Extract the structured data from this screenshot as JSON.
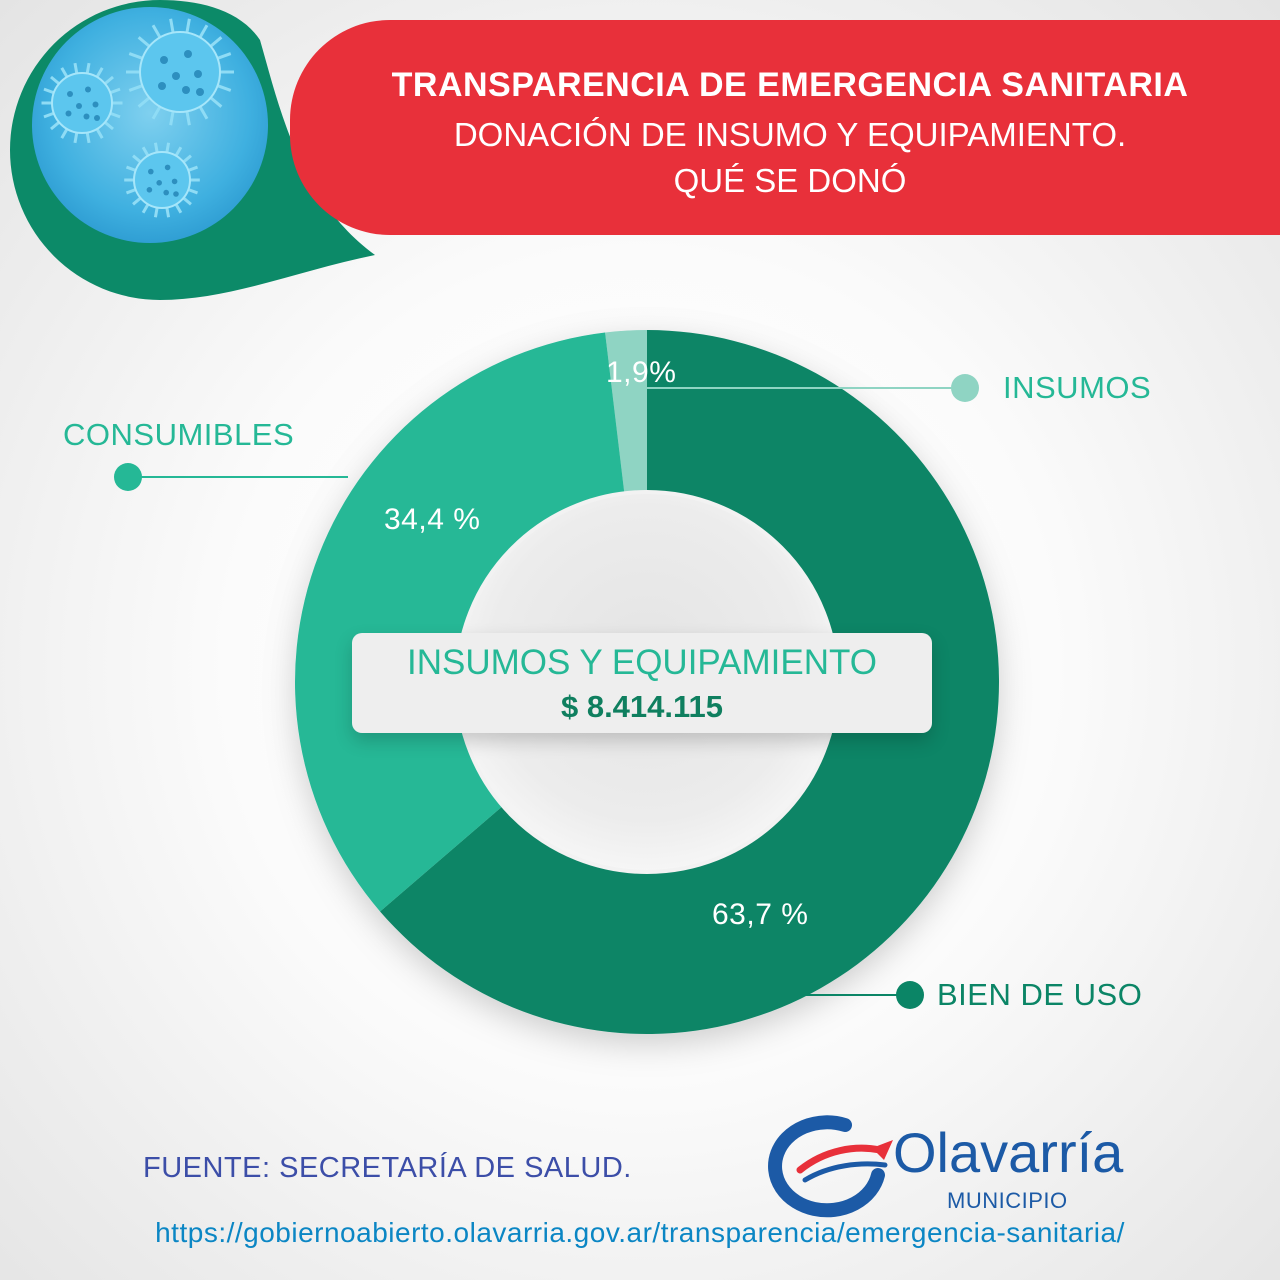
{
  "header": {
    "line1": "TRANSPARENCIA DE  EMERGENCIA SANITARIA",
    "line2": "DONACIÓN DE INSUMO Y EQUIPAMIENTO.",
    "line3": "QUÉ SE DONÓ"
  },
  "center": {
    "title": "INSUMOS Y EQUIPAMIENTO",
    "value": "$ 8.414.115"
  },
  "chart_data": {
    "type": "pie",
    "variant": "donut",
    "series": [
      {
        "name": "INSUMOS",
        "value": 1.9,
        "label": "1,9%",
        "color": "#8fd4c3"
      },
      {
        "name": "BIEN DE USO",
        "value": 63.7,
        "label": "63,7 %",
        "color": "#0b8566"
      },
      {
        "name": "CONSUMIBLES",
        "value": 34.4,
        "label": "34,4 %",
        "color": "#25b896"
      }
    ],
    "legend": "callouts-outside"
  },
  "footer": {
    "source": "FUENTE:  SECRETARÍA DE SALUD.",
    "url": "https://gobiernoabierto.olavarria.gov.ar/transparencia/emergencia-sanitaria/"
  },
  "logo": {
    "name": "Olavarría",
    "subtitle": "MUNICIPIO"
  },
  "colors": {
    "banner": "#e8303a",
    "dark_green": "#0b8566",
    "medium_green": "#25b896",
    "light_green": "#8fd4c3",
    "blue": "#1c5aa6"
  }
}
